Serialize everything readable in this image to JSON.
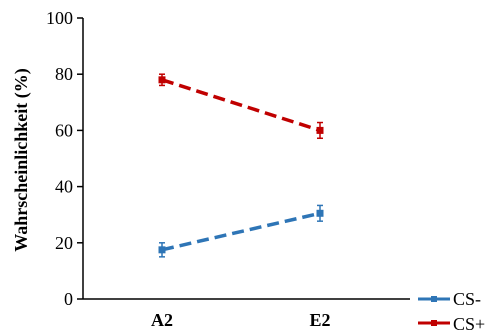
{
  "chart_data": {
    "type": "line",
    "categories": [
      "A2",
      "E2"
    ],
    "ylabel": "Wahrscheinlichkeit (%)",
    "xlabel": "",
    "ylim": [
      0,
      100
    ],
    "yticks": [
      0,
      20,
      40,
      60,
      80,
      100
    ],
    "grid": false,
    "legend": "bottom-right",
    "series": [
      {
        "name": "CS-",
        "values": [
          17.5,
          30.5
        ],
        "error": [
          2.5,
          2.8
        ],
        "color": "#2e75b6"
      },
      {
        "name": "CS+",
        "values": [
          78,
          60
        ],
        "error": [
          2.0,
          2.8
        ],
        "color": "#c00000"
      }
    ]
  }
}
